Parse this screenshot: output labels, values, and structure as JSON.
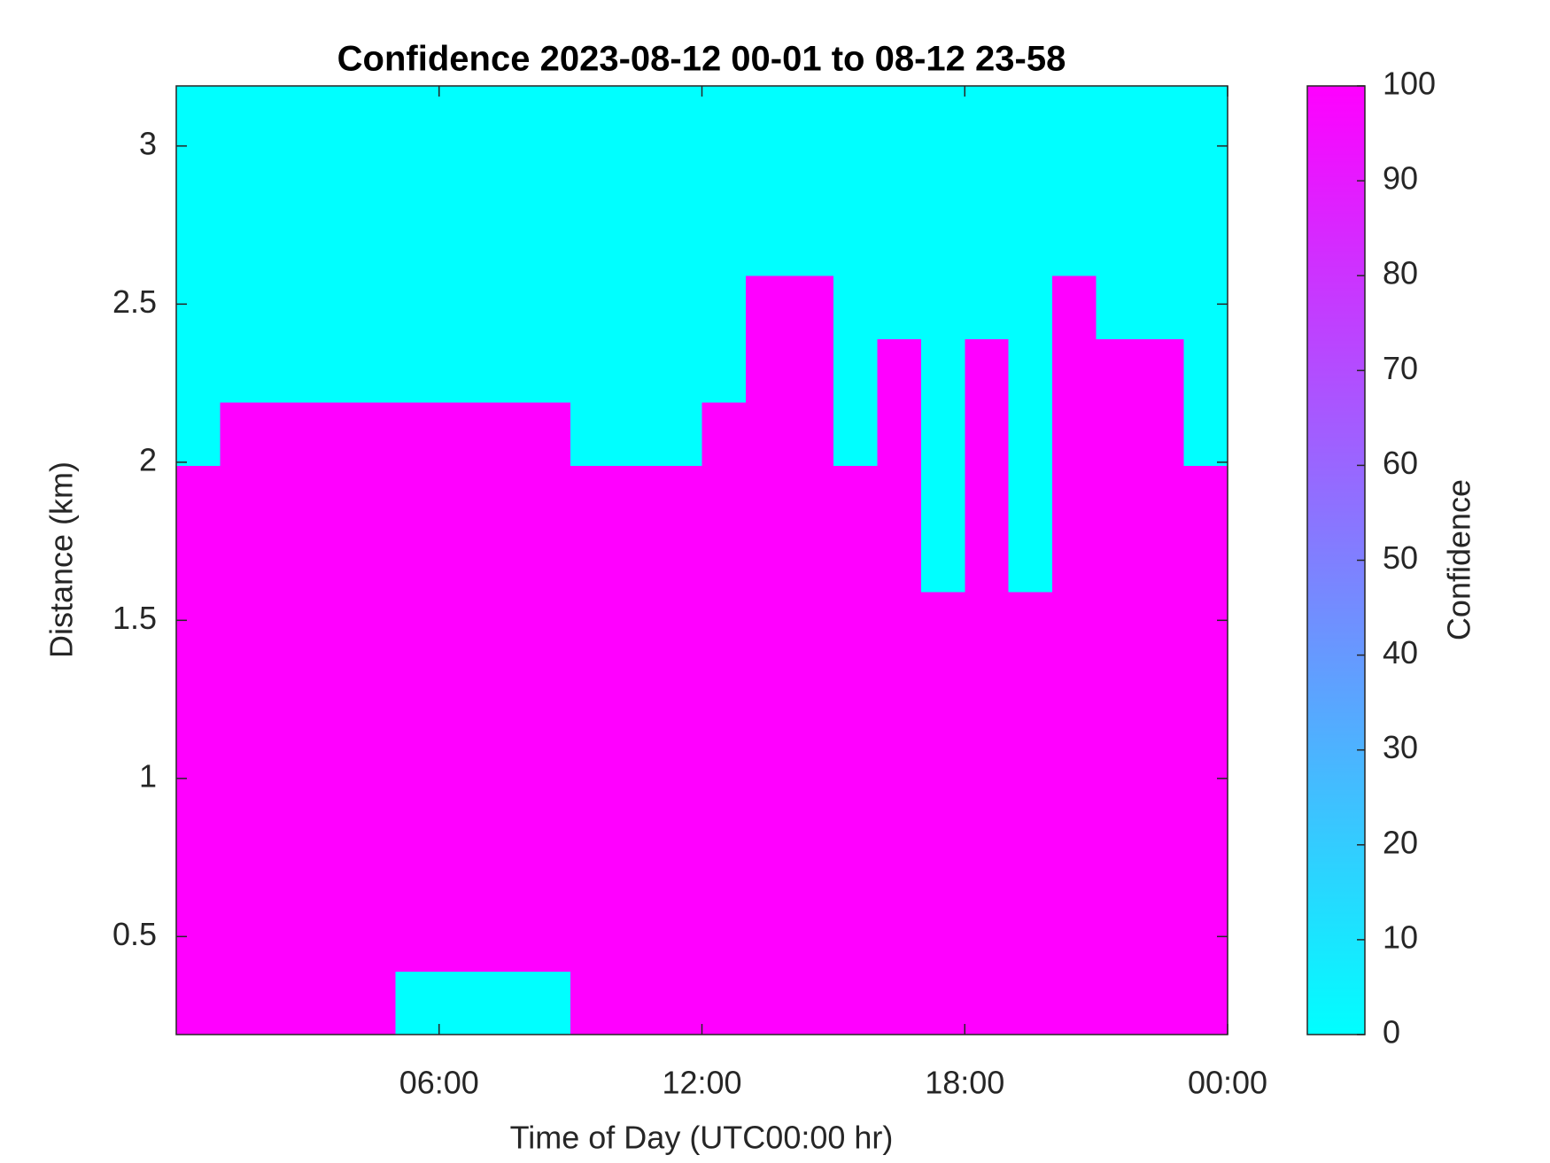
{
  "chart_data": {
    "type": "heatmap",
    "title": "Confidence 2023-08-12 00-01 to 08-12 23-58",
    "x_label": "Time of Day (UTC00:00 hr)",
    "y_label": "Distance (km)",
    "colorbar_label": "Confidence",
    "x": [
      0.5,
      1.5,
      2.5,
      3.5,
      4.5,
      5.5,
      6.5,
      7.5,
      8.5,
      9.5,
      10.5,
      11.5,
      12.5,
      13.5,
      14.5,
      15.5,
      16.5,
      17.5,
      18.5,
      19.5,
      20.5,
      21.5,
      22.5,
      23.5
    ],
    "y": [
      0.29,
      0.49,
      0.69,
      0.89,
      1.09,
      1.29,
      1.49,
      1.69,
      1.89,
      2.09,
      2.29,
      2.49,
      2.69,
      2.89,
      3.09
    ],
    "z": [
      [
        100,
        100,
        100,
        100,
        100,
        0,
        0,
        0,
        0,
        100,
        100,
        100,
        100,
        100,
        100,
        100,
        100,
        100,
        100,
        100,
        100,
        100,
        100,
        100
      ],
      [
        100,
        100,
        100,
        100,
        100,
        100,
        100,
        100,
        100,
        100,
        100,
        100,
        100,
        100,
        100,
        100,
        100,
        100,
        100,
        100,
        100,
        100,
        100,
        100
      ],
      [
        100,
        100,
        100,
        100,
        100,
        100,
        100,
        100,
        100,
        100,
        100,
        100,
        100,
        100,
        100,
        100,
        100,
        100,
        100,
        100,
        100,
        100,
        100,
        100
      ],
      [
        100,
        100,
        100,
        100,
        100,
        100,
        100,
        100,
        100,
        100,
        100,
        100,
        100,
        100,
        100,
        100,
        100,
        100,
        100,
        100,
        100,
        100,
        100,
        100
      ],
      [
        100,
        100,
        100,
        100,
        100,
        100,
        100,
        100,
        100,
        100,
        100,
        100,
        100,
        100,
        100,
        100,
        100,
        100,
        100,
        100,
        100,
        100,
        100,
        100
      ],
      [
        100,
        100,
        100,
        100,
        100,
        100,
        100,
        100,
        100,
        100,
        100,
        100,
        100,
        100,
        100,
        100,
        100,
        100,
        100,
        100,
        100,
        100,
        100,
        100
      ],
      [
        100,
        100,
        100,
        100,
        100,
        100,
        100,
        100,
        100,
        100,
        100,
        100,
        100,
        100,
        100,
        100,
        100,
        100,
        100,
        100,
        100,
        100,
        100,
        100
      ],
      [
        100,
        100,
        100,
        100,
        100,
        100,
        100,
        100,
        100,
        100,
        100,
        100,
        100,
        100,
        100,
        100,
        100,
        0,
        100,
        0,
        100,
        100,
        100,
        100
      ],
      [
        100,
        100,
        100,
        100,
        100,
        100,
        100,
        100,
        100,
        100,
        100,
        100,
        100,
        100,
        100,
        100,
        100,
        0,
        100,
        0,
        100,
        100,
        100,
        100
      ],
      [
        0,
        100,
        100,
        100,
        100,
        100,
        100,
        100,
        100,
        0,
        0,
        0,
        100,
        100,
        100,
        0,
        100,
        0,
        100,
        0,
        100,
        100,
        100,
        0
      ],
      [
        0,
        0,
        0,
        0,
        0,
        0,
        0,
        0,
        0,
        0,
        0,
        0,
        0,
        100,
        100,
        0,
        100,
        0,
        100,
        0,
        100,
        100,
        100,
        0
      ],
      [
        0,
        0,
        0,
        0,
        0,
        0,
        0,
        0,
        0,
        0,
        0,
        0,
        0,
        100,
        100,
        0,
        0,
        0,
        0,
        0,
        100,
        0,
        0,
        0
      ],
      [
        0,
        0,
        0,
        0,
        0,
        0,
        0,
        0,
        0,
        0,
        0,
        0,
        0,
        0,
        0,
        0,
        0,
        0,
        0,
        0,
        0,
        0,
        0,
        0
      ],
      [
        0,
        0,
        0,
        0,
        0,
        0,
        0,
        0,
        0,
        0,
        0,
        0,
        0,
        0,
        0,
        0,
        0,
        0,
        0,
        0,
        0,
        0,
        0,
        0
      ],
      [
        0,
        0,
        0,
        0,
        0,
        0,
        0,
        0,
        0,
        0,
        0,
        0,
        0,
        0,
        0,
        0,
        0,
        0,
        0,
        0,
        0,
        0,
        0,
        0
      ]
    ],
    "colormap": [
      "#00ffff",
      "#ff00ff"
    ],
    "clim": [
      0,
      100
    ],
    "xlim": [
      0,
      24
    ],
    "ylim": [
      0.19,
      3.19
    ],
    "xticks": [
      {
        "value": 6,
        "label": "06:00"
      },
      {
        "value": 12,
        "label": "12:00"
      },
      {
        "value": 18,
        "label": "18:00"
      },
      {
        "value": 24,
        "label": "00:00"
      }
    ],
    "yticks": [
      0.5,
      1,
      1.5,
      2,
      2.5,
      3
    ],
    "cticks": [
      0,
      10,
      20,
      30,
      40,
      50,
      60,
      70,
      80,
      90,
      100
    ]
  }
}
